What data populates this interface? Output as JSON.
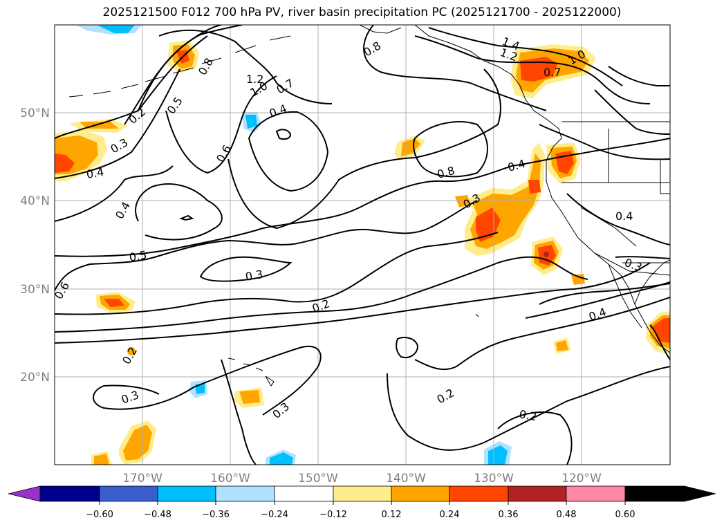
{
  "title": "2025121500 F012 700 hPa PV, river basin precipitation PC (2025121700 - 2025122000)",
  "axes": {
    "lat_labels": [
      "50°N",
      "40°N",
      "30°N",
      "20°N"
    ],
    "lon_labels": [
      "170°W",
      "160°W",
      "150°W",
      "140°W",
      "130°W",
      "120°W"
    ]
  },
  "contour_labels": [
    "1.4",
    "1.2",
    "1.0",
    "0.7",
    "1.2",
    "1.0",
    "0.8",
    "0.8",
    "0.7",
    "0.5",
    "0.2",
    "0.3",
    "0.4",
    "0.4",
    "0.6",
    "0.4",
    "0.8",
    "0.4",
    "0.3",
    "0.4",
    "0.5",
    "0.3",
    "0.6",
    "0.3",
    "0.2",
    "0.4",
    "0.2",
    "0.3",
    "0.3",
    "0.2",
    "0.2"
  ],
  "colorbar": {
    "ticks": [
      "−0.60",
      "−0.48",
      "−0.36",
      "−0.24",
      "−0.12",
      "0.12",
      "0.24",
      "0.36",
      "0.48",
      "0.60"
    ],
    "colors": [
      "#9932cc",
      "#00008b",
      "#3a5fcd",
      "#00bfff",
      "#b0e2ff",
      "#ffffff",
      "#ffec8b",
      "#ffa500",
      "#ff4500",
      "#b22222",
      "#ff88aa"
    ]
  },
  "chart_data": {
    "type": "heatmap",
    "title": "2025121500 F012 700 hPa PV, river basin precipitation PC (2025121700 - 2025122000)",
    "xlabel": "",
    "ylabel": "",
    "x_ticks": [
      "170°W",
      "160°W",
      "150°W",
      "140°W",
      "130°W",
      "120°W"
    ],
    "y_ticks": [
      "50°N",
      "40°N",
      "30°N",
      "20°N"
    ],
    "colorbar_levels": [
      -0.6,
      -0.48,
      -0.36,
      -0.24,
      -0.12,
      0.12,
      0.24,
      0.36,
      0.48,
      0.6
    ],
    "contour_levels": [
      0.2,
      0.3,
      0.4,
      0.5,
      0.6,
      0.7,
      0.8,
      1.0,
      1.2,
      1.4
    ]
  }
}
